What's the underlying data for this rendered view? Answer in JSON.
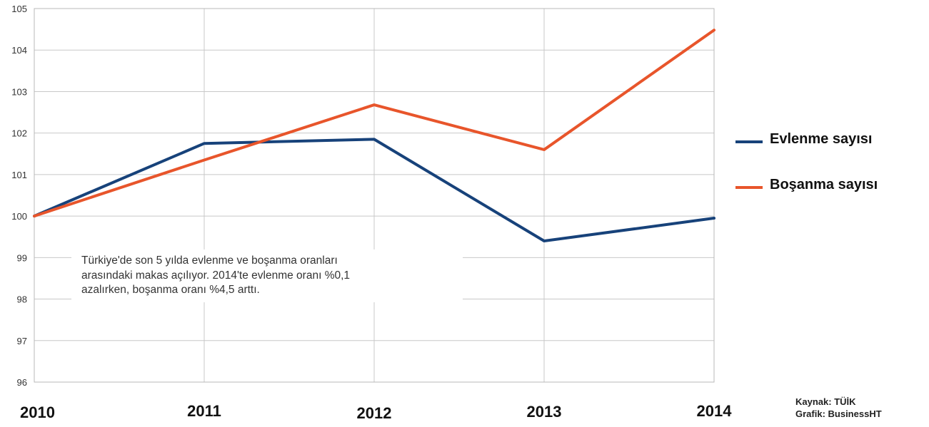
{
  "chart_data": {
    "type": "line",
    "x": [
      "2010",
      "2011",
      "2012",
      "2013",
      "2014"
    ],
    "series": [
      {
        "name": "Evlenme sayısı",
        "color": "#17427a",
        "values": [
          100,
          101.75,
          101.85,
          99.4,
          99.95
        ]
      },
      {
        "name": "Boşanma sayısı",
        "color": "#e8552b",
        "values": [
          100,
          101.35,
          102.68,
          101.6,
          104.48
        ]
      }
    ],
    "ylim": [
      96,
      105
    ],
    "yticks": [
      "96",
      "97",
      "98",
      "99",
      "100",
      "101",
      "102",
      "103",
      "104",
      "105"
    ],
    "grid": true,
    "legend_position": "right",
    "annotation": "Türkiye'de son 5 yılda evlenme ve boşanma oranları\narasındaki makas açılıyor. 2014'te evlenme oranı %0,1\nazalırken, boşanma oranı %4,5 arttı."
  },
  "credits": {
    "source": "Kaynak: TÜİK",
    "graphic": "Grafik: BusinessHT"
  }
}
